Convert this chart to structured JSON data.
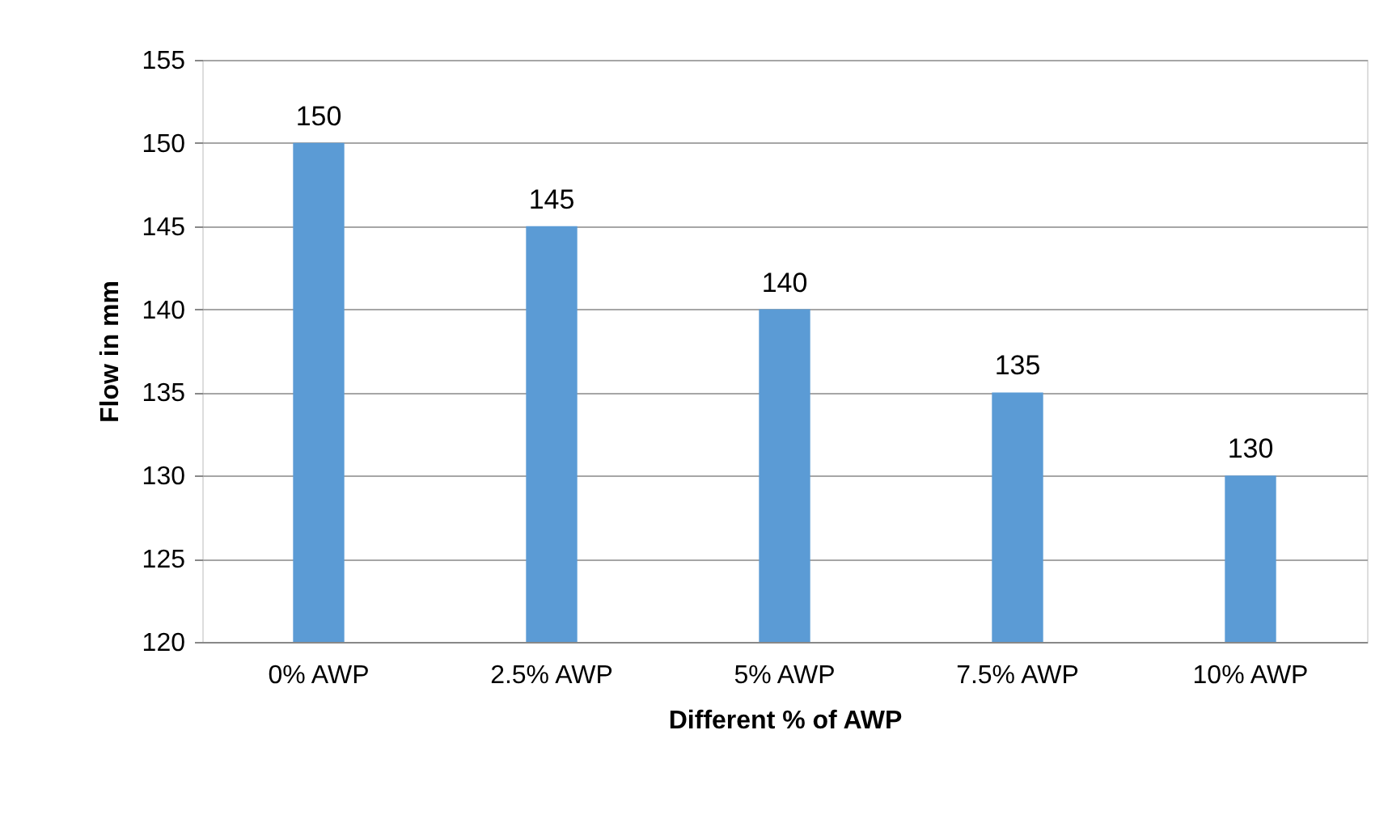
{
  "chart_data": {
    "type": "bar",
    "xlabel": "Different % of AWP",
    "ylabel": "Flow in mm",
    "categories": [
      "0% AWP",
      "2.5% AWP",
      "5% AWP",
      "7.5% AWP",
      "10% AWP"
    ],
    "values": [
      150,
      145,
      140,
      135,
      130
    ],
    "color": "#5b9bd5",
    "ylim": [
      120,
      155
    ],
    "yticks": [
      120,
      125,
      130,
      135,
      140,
      145,
      150,
      155
    ],
    "grid": "y",
    "data_labels": true
  }
}
